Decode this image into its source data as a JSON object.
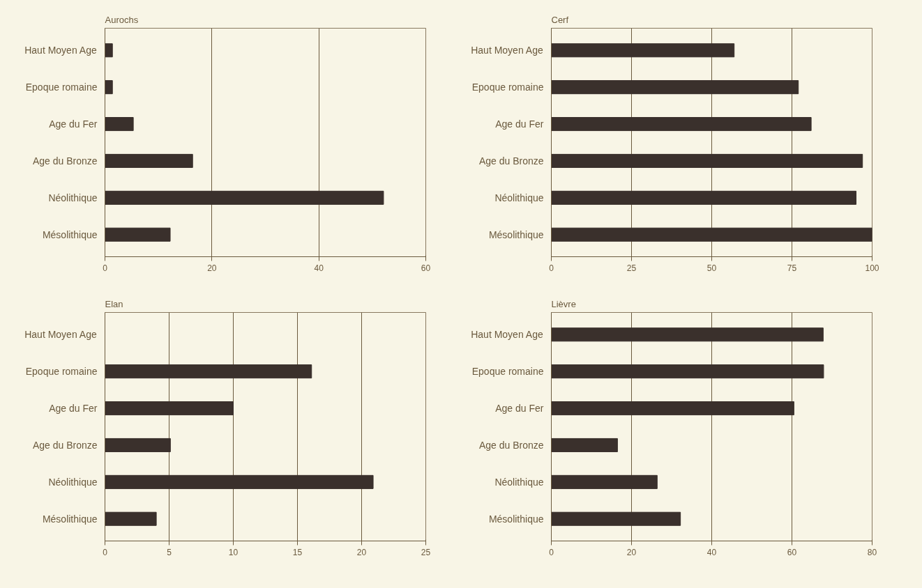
{
  "chart_data": [
    {
      "type": "bar",
      "orientation": "horizontal",
      "title": "Aurochs",
      "categories": [
        "Haut Moyen Age",
        "Epoque romaine",
        "Age du Fer",
        "Age du Bronze",
        "Néolithique",
        "Mésolithique"
      ],
      "values": [
        1.4,
        1.4,
        5.3,
        16.4,
        52.1,
        12.2
      ],
      "color": "#3a302c",
      "xlim": [
        0,
        60
      ],
      "xticks": [
        0,
        20,
        40,
        60
      ],
      "grid": "x"
    },
    {
      "type": "bar",
      "orientation": "horizontal",
      "title": "Cerf",
      "categories": [
        "Haut Moyen Age",
        "Epoque romaine",
        "Age du Fer",
        "Age du Bronze",
        "Néolithique",
        "Mésolithique"
      ],
      "values": [
        57,
        77,
        81,
        97,
        95,
        100
      ],
      "color": "#3a302c",
      "xlim": [
        0,
        100
      ],
      "xticks": [
        0,
        25,
        50,
        75,
        100
      ],
      "grid": "x"
    },
    {
      "type": "bar",
      "orientation": "horizontal",
      "title": "Elan",
      "categories": [
        "Haut Moyen Age",
        "Epoque romaine",
        "Age du Fer",
        "Age du Bronze",
        "Néolithique",
        "Mésolithique"
      ],
      "values": [
        0,
        16.1,
        10.0,
        5.1,
        20.9,
        4.0
      ],
      "color": "#3a302c",
      "xlim": [
        0,
        25
      ],
      "xticks": [
        0,
        5,
        10,
        15,
        20,
        25
      ],
      "grid": "x"
    },
    {
      "type": "bar",
      "orientation": "horizontal",
      "title": "Lièvre",
      "categories": [
        "Haut Moyen Age",
        "Epoque romaine",
        "Age du Fer",
        "Age du Bronze",
        "Néolithique",
        "Mésolithique"
      ],
      "values": [
        67.8,
        67.9,
        60.5,
        16.5,
        26.4,
        32.2
      ],
      "color": "#3a302c",
      "xlim": [
        0,
        80
      ],
      "xticks": [
        0,
        20,
        40,
        60,
        80
      ],
      "grid": "x"
    }
  ]
}
